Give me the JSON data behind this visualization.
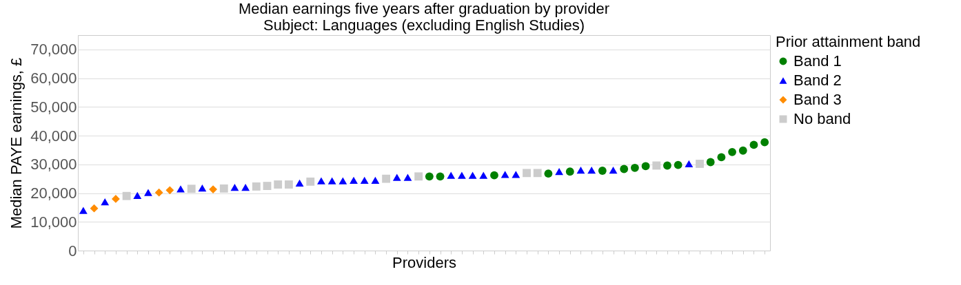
{
  "chart_data": {
    "type": "scatter",
    "title": "Median earnings five years after graduation by provider",
    "subtitle": "Subject: Languages (excluding English Studies)",
    "xlabel": "Providers",
    "ylabel": "Median PAYE earnings, £",
    "legend_title": "Prior attainment band",
    "legend": "right",
    "grid": "y",
    "ylim": [
      0,
      75000
    ],
    "yticks": [
      0,
      {
        "value": 10000,
        "label": "10,000"
      },
      {
        "value": 20000,
        "label": "20,000"
      },
      {
        "value": 30000,
        "label": "30,000"
      },
      {
        "value": 40000,
        "label": "40,000"
      },
      {
        "value": 50000,
        "label": "50,000"
      },
      {
        "value": 60000,
        "label": "60,000"
      },
      {
        "value": 70000,
        "label": "70,000"
      }
    ],
    "categories": [
      null,
      null,
      null,
      null,
      null,
      null,
      null,
      null,
      null,
      null,
      null,
      null,
      null,
      null,
      null,
      null,
      null,
      null,
      null,
      null,
      null,
      null,
      null,
      null,
      null,
      null,
      null,
      null,
      null,
      null,
      null,
      null,
      null,
      null,
      null,
      null,
      null,
      null,
      null,
      null,
      null,
      null,
      null,
      null,
      null,
      null,
      null,
      null,
      null,
      null,
      null,
      null,
      null,
      null,
      null,
      null,
      null,
      null,
      null,
      null,
      null,
      null,
      null,
      null
    ],
    "series": [
      {
        "name": "Band 1",
        "color": "#008000",
        "marker": "circle",
        "values": [
          null,
          null,
          null,
          null,
          null,
          null,
          null,
          null,
          null,
          null,
          null,
          null,
          null,
          null,
          null,
          null,
          null,
          null,
          null,
          null,
          null,
          null,
          null,
          null,
          null,
          null,
          null,
          null,
          null,
          null,
          null,
          null,
          25800,
          25800,
          null,
          null,
          null,
          null,
          26200,
          null,
          null,
          null,
          null,
          26800,
          null,
          27500,
          null,
          null,
          27800,
          null,
          28400,
          28800,
          29400,
          null,
          29600,
          29800,
          null,
          null,
          30800,
          32500,
          34300,
          34800,
          36800,
          37700
        ]
      },
      {
        "name": "Band 2",
        "color": "#0000ff",
        "marker": "triangle",
        "values": [
          14000,
          null,
          17000,
          null,
          null,
          19200,
          20200,
          null,
          null,
          21500,
          null,
          21800,
          null,
          null,
          22000,
          22000,
          null,
          null,
          null,
          null,
          23500,
          null,
          24300,
          24300,
          24300,
          24500,
          24500,
          24500,
          null,
          25500,
          25500,
          null,
          null,
          null,
          26200,
          26200,
          26200,
          26200,
          null,
          26500,
          26500,
          null,
          null,
          null,
          27500,
          null,
          28000,
          28000,
          null,
          28000,
          null,
          null,
          null,
          null,
          null,
          null,
          30200,
          null,
          null,
          null,
          null,
          null,
          null,
          null
        ]
      },
      {
        "name": "Band 3",
        "color": "#ff8c00",
        "marker": "diamond",
        "values": [
          null,
          14700,
          null,
          18000,
          null,
          null,
          null,
          20200,
          21000,
          null,
          null,
          null,
          21300,
          null,
          null,
          null,
          null,
          null,
          null,
          null,
          null,
          null,
          null,
          null,
          null,
          null,
          null,
          null,
          null,
          null,
          null,
          null,
          null,
          null,
          null,
          null,
          null,
          null,
          null,
          null,
          null,
          null,
          null,
          null,
          null,
          null,
          null,
          null,
          null,
          null,
          null,
          null,
          null,
          null,
          null,
          null,
          null,
          null,
          null,
          null,
          null,
          null,
          null,
          null
        ]
      },
      {
        "name": "No band",
        "color": "#cccccc",
        "marker": "square",
        "values": [
          null,
          null,
          null,
          null,
          19000,
          null,
          null,
          null,
          null,
          null,
          21500,
          null,
          null,
          21600,
          null,
          null,
          22300,
          22500,
          23000,
          23000,
          null,
          24000,
          null,
          null,
          null,
          null,
          null,
          null,
          25000,
          null,
          null,
          25800,
          null,
          null,
          null,
          null,
          null,
          null,
          null,
          null,
          null,
          27000,
          27000,
          null,
          null,
          null,
          null,
          null,
          null,
          null,
          null,
          null,
          null,
          29600,
          null,
          null,
          null,
          30200,
          null,
          null,
          null,
          null,
          null,
          null
        ]
      }
    ]
  }
}
